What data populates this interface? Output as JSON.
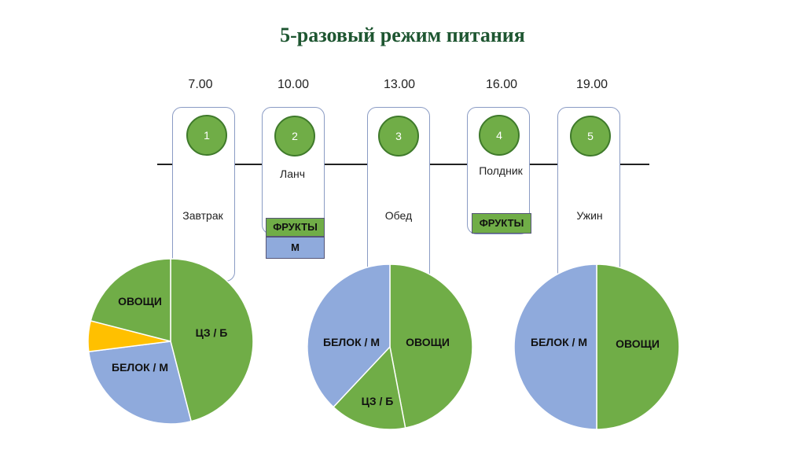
{
  "title": "5-разовый режим питания",
  "colors": {
    "green": "#70ad47",
    "blue": "#8faadc",
    "yellow": "#ffc000",
    "title": "#1e5631"
  },
  "meals": [
    {
      "time": "7.00",
      "number": "1",
      "name": "Завтрак"
    },
    {
      "time": "10.00",
      "number": "2",
      "name": "Ланч"
    },
    {
      "time": "13.00",
      "number": "3",
      "name": "Обед"
    },
    {
      "time": "16.00",
      "number": "4",
      "name": "Полдник"
    },
    {
      "time": "19.00",
      "number": "5",
      "name": "Ужин"
    }
  ],
  "tags": {
    "lunch_fruits": "ФРУКТЫ",
    "lunch_m": "М",
    "snack_fruits": "ФРУКТЫ"
  },
  "chart_data": [
    {
      "type": "pie",
      "meal": "Завтрак",
      "slices": [
        {
          "label": "ЦЗ / Б",
          "value": 46,
          "color": "#70ad47"
        },
        {
          "label": "БЕЛОК / М",
          "value": 27,
          "color": "#8faadc"
        },
        {
          "label": "",
          "value": 6,
          "color": "#ffc000"
        },
        {
          "label": "ОВОЩИ",
          "value": 21,
          "color": "#70ad47"
        }
      ]
    },
    {
      "type": "pie",
      "meal": "Обед",
      "slices": [
        {
          "label": "ОВОЩИ",
          "value": 47,
          "color": "#70ad47"
        },
        {
          "label": "ЦЗ / Б",
          "value": 15,
          "color": "#70ad47"
        },
        {
          "label": "БЕЛОК / М",
          "value": 38,
          "color": "#8faadc"
        }
      ]
    },
    {
      "type": "pie",
      "meal": "Ужин",
      "slices": [
        {
          "label": "ОВОЩИ",
          "value": 50,
          "color": "#70ad47"
        },
        {
          "label": "БЕЛОК / М",
          "value": 50,
          "color": "#8faadc"
        }
      ]
    }
  ]
}
